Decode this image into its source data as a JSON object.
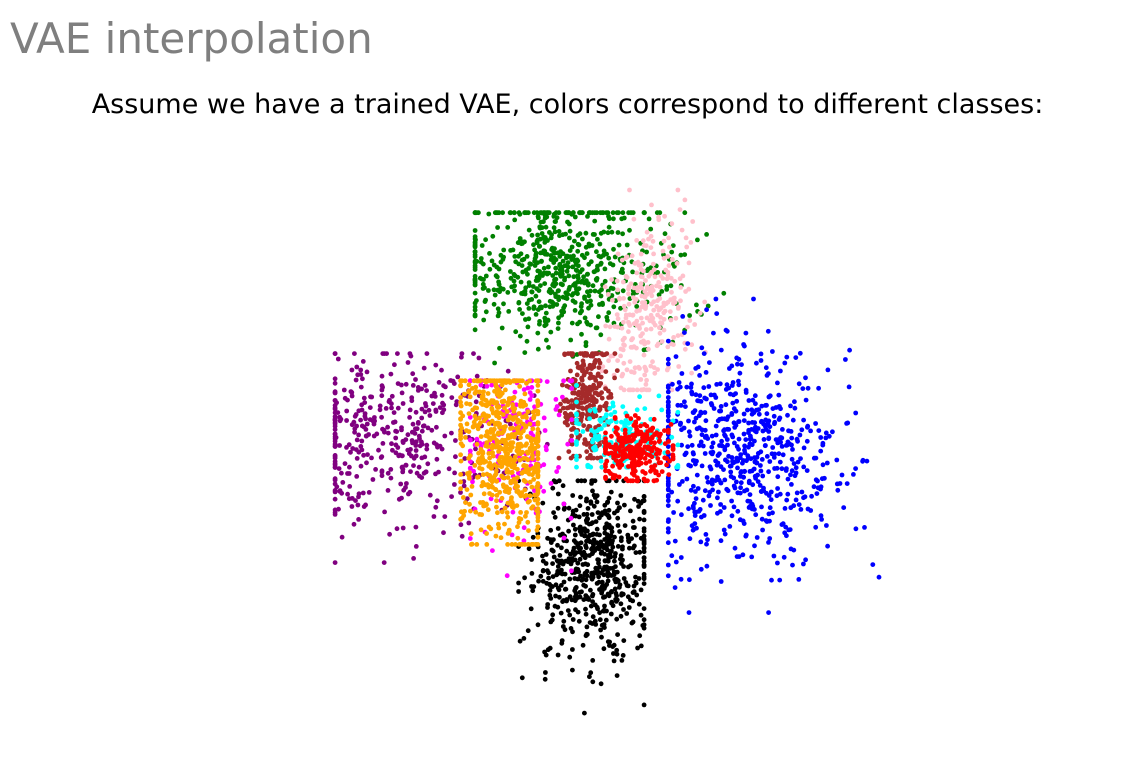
{
  "slide": {
    "title": "VAE interpolation",
    "subtitle": "Assume we have a trained VAE, colors correspond to different classes:"
  },
  "chart_data": {
    "type": "scatter",
    "title": "",
    "xlabel": "",
    "ylabel": "",
    "xlim": [
      -3.2,
      3.2
    ],
    "ylim": [
      -3.4,
      3.4
    ],
    "axes_visible": false,
    "grid": false,
    "legend": "none",
    "series": [
      {
        "color": "#008000",
        "points": 650,
        "center": [
          -0.35,
          1.85
        ],
        "spread": [
          0.55,
          0.32
        ],
        "cov": -0.05,
        "tail": [
          0.25,
          1.0
        ],
        "extent": [
          [
            -1.2,
            2.55
          ],
          [
            0.48,
            2.6
          ]
        ]
      },
      {
        "color": "#800080",
        "points": 420,
        "center": [
          -1.9,
          0.2
        ],
        "spread": [
          0.55,
          0.5
        ],
        "cov": -0.05,
        "tail": [
          -0.7,
          -0.25
        ],
        "extent": [
          [
            -2.65,
            -0.35
          ],
          [
            -1.25,
            1.05
          ]
        ]
      },
      {
        "color": "#ffa500",
        "points": 620,
        "center": [
          -0.9,
          0.02
        ],
        "spread": [
          0.25,
          0.5
        ],
        "cov": -0.08,
        "tail": [
          0.0,
          0.0
        ],
        "extent": [
          [
            -1.35,
            -0.55
          ],
          [
            -1.05,
            0.75
          ]
        ]
      },
      {
        "color": "#ff00ff",
        "points": 180,
        "center": [
          -0.75,
          0.15
        ],
        "spread": [
          0.3,
          0.5
        ],
        "cov": 0.0,
        "tail": [
          -0.15,
          -0.5
        ],
        "extent": [
          [
            -1.25,
            -0.2
          ],
          [
            -1.9,
            0.75
          ]
        ]
      },
      {
        "color": "#a52a2a",
        "points": 280,
        "center": [
          -0.05,
          0.55
        ],
        "spread": [
          0.12,
          0.38
        ],
        "cov": 0.0,
        "tail": [
          0.0,
          0.0
        ],
        "extent": [
          [
            -0.35,
            0.3
          ],
          [
            -0.1,
            1.05
          ]
        ]
      },
      {
        "color": "#ffc0cb",
        "points": 280,
        "center": [
          0.55,
          1.4
        ],
        "spread": [
          0.2,
          0.45
        ],
        "cov": 0.06,
        "tail": [
          0.25,
          0.7
        ],
        "extent": [
          [
            0.1,
            1.3
          ],
          [
            0.65,
            2.85
          ]
        ]
      },
      {
        "color": "#00ffff",
        "points": 160,
        "center": [
          0.3,
          0.15
        ],
        "spread": [
          0.3,
          0.25
        ],
        "cov": 0.0,
        "tail": [
          0.0,
          0.0
        ],
        "extent": [
          [
            -0.15,
            0.9
          ],
          [
            -0.2,
            0.7
          ]
        ]
      },
      {
        "color": "#ff0000",
        "points": 260,
        "center": [
          0.45,
          0.0
        ],
        "spread": [
          0.2,
          0.18
        ],
        "cov": 0.0,
        "tail": [
          0.0,
          0.0
        ],
        "extent": [
          [
            0.15,
            0.85
          ],
          [
            -0.35,
            0.4
          ]
        ]
      },
      {
        "color": "#0000ff",
        "points": 650,
        "center": [
          1.5,
          0.05
        ],
        "spread": [
          0.5,
          0.55
        ],
        "cov": -0.05,
        "tail": [
          0.15,
          -0.65
        ],
        "extent": [
          [
            0.8,
            3.0
          ],
          [
            -1.8,
            1.65
          ]
        ]
      },
      {
        "color": "#000000",
        "points": 600,
        "center": [
          0.05,
          -1.15
        ],
        "spread": [
          0.3,
          0.45
        ],
        "cov": 0.0,
        "tail": [
          -0.15,
          -0.9
        ],
        "extent": [
          [
            -0.75,
            0.55
          ],
          [
            -3.2,
            -0.35
          ]
        ]
      }
    ]
  }
}
